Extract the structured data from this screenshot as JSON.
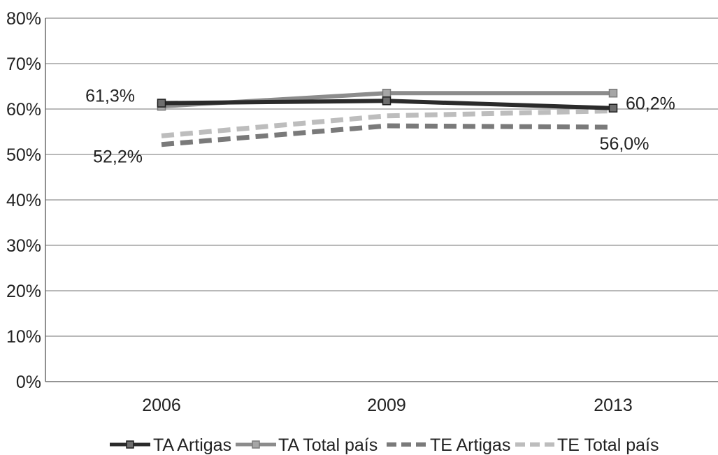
{
  "chart_data": {
    "type": "line",
    "title": "",
    "xlabel": "",
    "ylabel": "",
    "categories": [
      "2006",
      "2009",
      "2013"
    ],
    "ylim": [
      0,
      80
    ],
    "yticks": [
      0,
      10,
      20,
      30,
      40,
      50,
      60,
      70,
      80
    ],
    "ytick_labels": [
      "0%",
      "10%",
      "20%",
      "30%",
      "40%",
      "50%",
      "60%",
      "70%",
      "80%"
    ],
    "grid": "horizontal",
    "legend_position": "bottom",
    "series": [
      {
        "name": "TA Artigas",
        "values": [
          61.3,
          61.8,
          60.2
        ],
        "color": "#2b2b2b",
        "style": "solid",
        "marker": "square"
      },
      {
        "name": "TA Total país",
        "values": [
          60.6,
          63.5,
          63.5
        ],
        "color": "#8c8c8c",
        "style": "solid",
        "marker": "square"
      },
      {
        "name": "TE Artigas",
        "values": [
          52.2,
          56.3,
          56.0
        ],
        "color": "#7a7a7a",
        "style": "dashed",
        "marker": "none"
      },
      {
        "name": "TE Total país",
        "values": [
          54.1,
          58.5,
          59.6
        ],
        "color": "#bdbdbd",
        "style": "dashed",
        "marker": "none"
      }
    ],
    "data_labels": [
      {
        "series": 0,
        "point": 0,
        "text": "61,3%",
        "position": "left"
      },
      {
        "series": 2,
        "point": 0,
        "text": "52,2%",
        "position": "below-left"
      },
      {
        "series": 0,
        "point": 2,
        "text": "60,2%",
        "position": "right"
      },
      {
        "series": 2,
        "point": 2,
        "text": "56,0%",
        "position": "below"
      }
    ]
  }
}
